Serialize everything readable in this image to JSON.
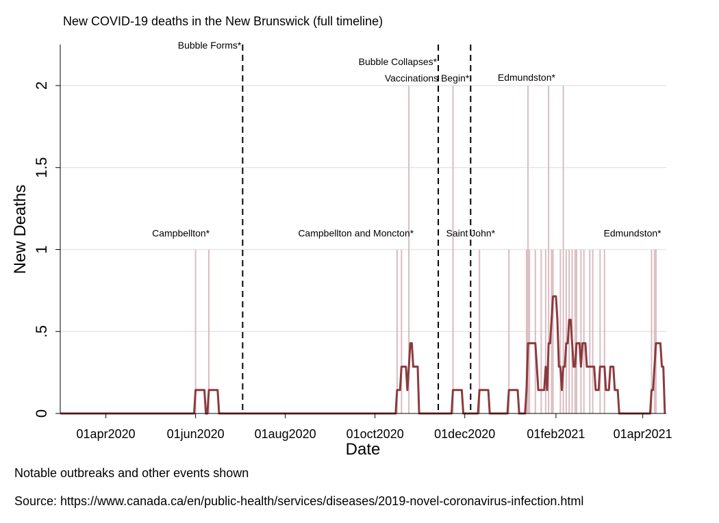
{
  "chart_data": {
    "type": "line",
    "title": "New COVID-19 deaths in the New Brunswick (full timeline)",
    "xlabel": "Date",
    "ylabel": "New Deaths",
    "x_range": [
      "2020-03-01",
      "2021-04-17"
    ],
    "ylim": [
      0,
      2.2
    ],
    "y_ticks": [
      {
        "value": 0,
        "label": "0"
      },
      {
        "value": 0.5,
        "label": ".5"
      },
      {
        "value": 1,
        "label": "1"
      },
      {
        "value": 1.5,
        "label": "1.5"
      },
      {
        "value": 2,
        "label": "2"
      }
    ],
    "x_ticks": [
      {
        "date": "2020-04-01",
        "label": "01apr2020"
      },
      {
        "date": "2020-06-01",
        "label": "01jun2020"
      },
      {
        "date": "2020-08-01",
        "label": "01aug2020"
      },
      {
        "date": "2020-10-01",
        "label": "01oct2020"
      },
      {
        "date": "2020-12-01",
        "label": "01dec2020"
      },
      {
        "date": "2021-02-01",
        "label": "01feb2021"
      },
      {
        "date": "2021-04-01",
        "label": "01apr2021"
      }
    ],
    "grid": true,
    "daily_deaths": [
      {
        "date": "2020-06-01",
        "value": 1
      },
      {
        "date": "2020-06-10",
        "value": 1
      },
      {
        "date": "2020-10-16",
        "value": 1
      },
      {
        "date": "2020-10-19",
        "value": 1
      },
      {
        "date": "2020-10-24",
        "value": 2
      },
      {
        "date": "2020-11-23",
        "value": 2
      },
      {
        "date": "2020-12-11",
        "value": 1
      },
      {
        "date": "2020-12-31",
        "value": 1
      },
      {
        "date": "2021-01-12",
        "value": 1
      },
      {
        "date": "2021-01-13",
        "value": 2
      },
      {
        "date": "2021-01-14",
        "value": 1
      },
      {
        "date": "2021-01-18",
        "value": 1
      },
      {
        "date": "2021-01-22",
        "value": 1
      },
      {
        "date": "2021-01-25",
        "value": 1
      },
      {
        "date": "2021-01-27",
        "value": 2
      },
      {
        "date": "2021-01-29",
        "value": 1
      },
      {
        "date": "2021-01-30",
        "value": 1
      },
      {
        "date": "2021-02-04",
        "value": 1
      },
      {
        "date": "2021-02-06",
        "value": 2
      },
      {
        "date": "2021-02-08",
        "value": 1
      },
      {
        "date": "2021-02-10",
        "value": 1
      },
      {
        "date": "2021-02-12",
        "value": 1
      },
      {
        "date": "2021-02-14",
        "value": 1
      },
      {
        "date": "2021-02-15",
        "value": 1
      },
      {
        "date": "2021-02-18",
        "value": 1
      },
      {
        "date": "2021-02-20",
        "value": 1
      },
      {
        "date": "2021-02-24",
        "value": 1
      },
      {
        "date": "2021-02-26",
        "value": 1
      },
      {
        "date": "2021-03-03",
        "value": 1
      },
      {
        "date": "2021-03-06",
        "value": 1
      },
      {
        "date": "2021-04-07",
        "value": 1
      },
      {
        "date": "2021-04-09",
        "value": 1
      },
      {
        "date": "2021-04-10",
        "value": 1
      }
    ],
    "seven_day_average": [
      [
        "2020-03-01",
        0
      ],
      [
        "2020-05-31",
        0
      ],
      [
        "2020-06-01",
        0.1429
      ],
      [
        "2020-06-07",
        0.1429
      ],
      [
        "2020-06-08",
        0
      ],
      [
        "2020-06-09",
        0
      ],
      [
        "2020-06-10",
        0.1429
      ],
      [
        "2020-06-16",
        0.1429
      ],
      [
        "2020-06-17",
        0
      ],
      [
        "2020-10-15",
        0
      ],
      [
        "2020-10-16",
        0.1429
      ],
      [
        "2020-10-18",
        0.1429
      ],
      [
        "2020-10-19",
        0.2857
      ],
      [
        "2020-10-22",
        0.2857
      ],
      [
        "2020-10-23",
        0.1429
      ],
      [
        "2020-10-24",
        0.2857
      ],
      [
        "2020-10-25",
        0.4286
      ],
      [
        "2020-10-26",
        0.4286
      ],
      [
        "2020-10-27",
        0.2857
      ],
      [
        "2020-10-30",
        0.2857
      ],
      [
        "2020-10-31",
        0
      ],
      [
        "2020-11-22",
        0
      ],
      [
        "2020-11-23",
        0.1429
      ],
      [
        "2020-11-29",
        0.1429
      ],
      [
        "2020-11-30",
        0
      ],
      [
        "2020-12-10",
        0
      ],
      [
        "2020-12-11",
        0.1429
      ],
      [
        "2020-12-17",
        0.1429
      ],
      [
        "2020-12-18",
        0
      ],
      [
        "2020-12-30",
        0
      ],
      [
        "2020-12-31",
        0.1429
      ],
      [
        "2021-01-06",
        0.1429
      ],
      [
        "2021-01-07",
        0
      ],
      [
        "2021-01-11",
        0
      ],
      [
        "2021-01-12",
        0.1429
      ],
      [
        "2021-01-13",
        0.4286
      ],
      [
        "2021-01-18",
        0.4286
      ],
      [
        "2021-01-19",
        0.2857
      ],
      [
        "2021-01-20",
        0.1429
      ],
      [
        "2021-01-24",
        0.1429
      ],
      [
        "2021-01-25",
        0.2857
      ],
      [
        "2021-01-26",
        0.1429
      ],
      [
        "2021-01-27",
        0.4286
      ],
      [
        "2021-01-28",
        0.4286
      ],
      [
        "2021-01-29",
        0.5714
      ],
      [
        "2021-01-30",
        0.7143
      ],
      [
        "2021-02-01",
        0.7143
      ],
      [
        "2021-02-02",
        0.5714
      ],
      [
        "2021-02-03",
        0.2857
      ],
      [
        "2021-02-04",
        0.2857
      ],
      [
        "2021-02-05",
        0.1429
      ],
      [
        "2021-02-06",
        0.2857
      ],
      [
        "2021-02-07",
        0.2857
      ],
      [
        "2021-02-08",
        0.4286
      ],
      [
        "2021-02-09",
        0.4286
      ],
      [
        "2021-02-10",
        0.5714
      ],
      [
        "2021-02-11",
        0.5714
      ],
      [
        "2021-02-12",
        0.4286
      ],
      [
        "2021-02-13",
        0.2857
      ],
      [
        "2021-02-14",
        0.2857
      ],
      [
        "2021-02-15",
        0.4286
      ],
      [
        "2021-02-17",
        0.4286
      ],
      [
        "2021-02-18",
        0.2857
      ],
      [
        "2021-02-19",
        0.4286
      ],
      [
        "2021-02-21",
        0.4286
      ],
      [
        "2021-02-22",
        0.2857
      ],
      [
        "2021-02-25",
        0.2857
      ],
      [
        "2021-02-26",
        0.2857
      ],
      [
        "2021-02-27",
        0.2857
      ],
      [
        "2021-02-28",
        0.1429
      ],
      [
        "2021-03-02",
        0.1429
      ],
      [
        "2021-03-03",
        0.2857
      ],
      [
        "2021-03-05",
        0.2857
      ],
      [
        "2021-03-06",
        0.2857
      ],
      [
        "2021-03-07",
        0.1429
      ],
      [
        "2021-03-09",
        0.1429
      ],
      [
        "2021-03-10",
        0.2857
      ],
      [
        "2021-03-12",
        0.2857
      ],
      [
        "2021-03-13",
        0.1429
      ],
      [
        "2021-03-15",
        0.1429
      ],
      [
        "2021-03-16",
        0
      ],
      [
        "2021-04-06",
        0
      ],
      [
        "2021-04-07",
        0.1429
      ],
      [
        "2021-04-08",
        0.1429
      ],
      [
        "2021-04-09",
        0.2857
      ],
      [
        "2021-04-10",
        0.4286
      ],
      [
        "2021-04-13",
        0.4286
      ],
      [
        "2021-04-14",
        0.2857
      ],
      [
        "2021-04-15",
        0.2857
      ],
      [
        "2021-04-16",
        0
      ]
    ],
    "events": [
      {
        "date": "2020-07-03",
        "label": "Bubble Forms*"
      },
      {
        "date": "2020-11-13",
        "label": "Bubble Collapses*"
      },
      {
        "date": "2020-12-05",
        "label": "Vaccinations Begin*"
      }
    ],
    "annotations": [
      {
        "label": "Campbellton*",
        "date": "2020-05-22",
        "y": 1.1
      },
      {
        "label": "Campbellton and Moncton*",
        "date": "2020-09-18",
        "y": 1.1
      },
      {
        "label": "Saint John*",
        "date": "2020-12-05",
        "y": 1.1
      },
      {
        "label": "Edmundston*",
        "date": "2021-01-12",
        "y": 2.05
      },
      {
        "label": "Edmundston*",
        "date": "2021-03-25",
        "y": 1.1
      }
    ],
    "colors": {
      "line": "#8b3a3e",
      "spike": "#d9bcc0",
      "grid": "#e6e6e6",
      "event": "#000000"
    }
  },
  "notes": [
    "Notable outbreaks and other events shown",
    "Source: https://www.canada.ca/en/public-health/services/diseases/2019-novel-coronavirus-infection.html"
  ]
}
